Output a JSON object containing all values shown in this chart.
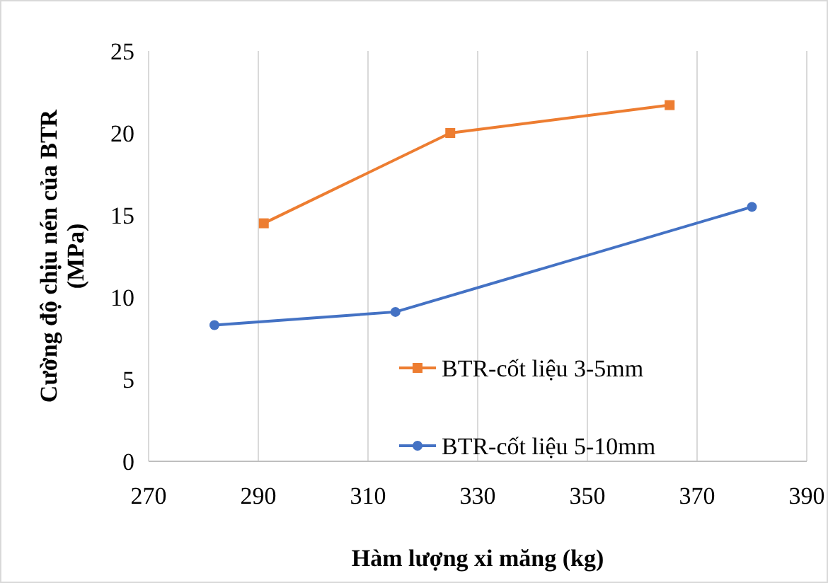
{
  "chart_data": {
    "type": "line",
    "xlabel": "Hàm lượng xi măng (kg)",
    "ylabel": "Cường độ chịu nén của BTR (MPa)",
    "xlim": [
      270,
      390
    ],
    "xticks": [
      270,
      290,
      310,
      330,
      350,
      370,
      390
    ],
    "ylim": [
      0,
      25
    ],
    "yticks": [
      0,
      5,
      10,
      15,
      20,
      25
    ],
    "grid": "x",
    "legend": "bottom right",
    "series": [
      {
        "name": "BTR-cốt liệu 3-5mm",
        "color": "#ed7d31",
        "marker": "square",
        "x": [
          291,
          325,
          365
        ],
        "values": [
          14.5,
          20,
          21.7
        ]
      },
      {
        "name": "BTR-cốt liệu 5-10mm",
        "color": "#4472c4",
        "marker": "circle",
        "x": [
          282,
          315,
          380
        ],
        "values": [
          8.3,
          9.1,
          15.5
        ]
      }
    ]
  }
}
